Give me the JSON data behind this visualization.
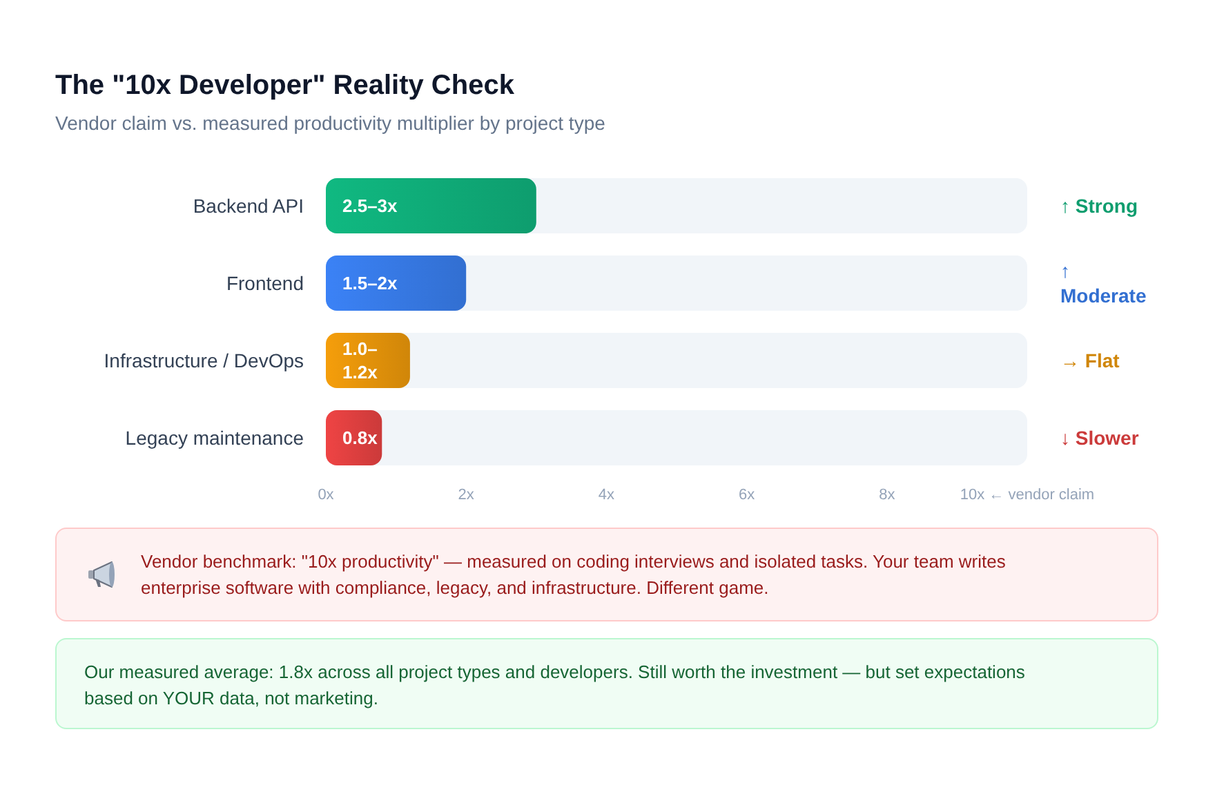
{
  "chart_data": {
    "type": "bar",
    "orientation": "horizontal",
    "title": "The \"10x Developer\" Reality Check",
    "subtitle": "Vendor claim vs. measured productivity multiplier by project type",
    "categories": [
      "Backend API",
      "Frontend",
      "Infrastructure / DevOps",
      "Legacy maintenance"
    ],
    "values": [
      3,
      2,
      1.2,
      0.8
    ],
    "value_labels": [
      "2.5–3x",
      "1.5–2x",
      "1.0–1.2x",
      "0.8x"
    ],
    "colors": [
      "#10b981",
      "#3b82f6",
      "#f59e0b",
      "#ef4444"
    ],
    "xlim": [
      0,
      10
    ],
    "xticks": [
      {
        "value": 0,
        "label": "0x"
      },
      {
        "value": 2,
        "label": "2x"
      },
      {
        "value": 4,
        "label": "4x"
      },
      {
        "value": 6,
        "label": "6x"
      },
      {
        "value": 8,
        "label": "8x"
      },
      {
        "value": 10,
        "label": "10x ← vendor claim"
      }
    ],
    "annotations": [
      "↑ Strong",
      "↑ Moderate",
      "→ Flat",
      "↓ Slower",
      "Vendor benchmark: \"10x productivity\" — measured on coding interviews and isolated tasks. Your team writes enterprise software with compliance, legacy, and infrastructure. Different game.",
      "Our measured average: 1.8x across all project types and developers. Still worth the investment — but set expectations based on YOUR data, not marketing."
    ]
  }
}
